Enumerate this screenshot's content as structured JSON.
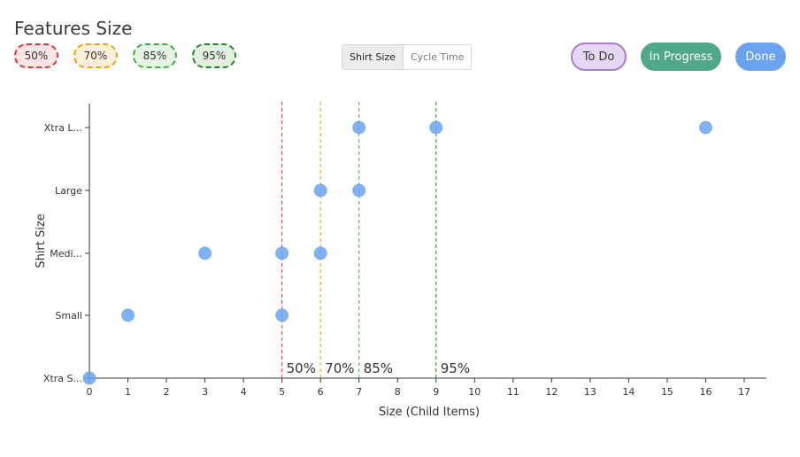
{
  "header": {
    "title": "Features Size",
    "percentiles": [
      {
        "label": "50%",
        "color": "#e03535",
        "bg": "#fbe5e5"
      },
      {
        "label": "70%",
        "color": "#f0a010",
        "bg": "#fdf1dc"
      },
      {
        "label": "85%",
        "color": "#3fae3f",
        "bg": "#e6f4e4"
      },
      {
        "label": "95%",
        "color": "#1f8a1f",
        "bg": "#e3f0e1"
      }
    ],
    "toggle": {
      "options": [
        "Shirt Size",
        "Cycle Time"
      ],
      "selected": "Shirt Size"
    },
    "states": [
      {
        "label": "To Do",
        "bg": "#e6d8f5",
        "border": "#a77bd6",
        "text": "#333333"
      },
      {
        "label": "In Progress",
        "bg": "#4fa88a",
        "border": "#4fa88a",
        "text": "#ffffff"
      },
      {
        "label": "Done",
        "bg": "#6aa3ef",
        "border": "#6aa3ef",
        "text": "#ffffff"
      }
    ]
  },
  "chart_data": {
    "type": "scatter",
    "xlabel": "Size (Child Items)",
    "ylabel": "Shirt Size",
    "xlim": [
      0,
      17
    ],
    "x_ticks": [
      0,
      1,
      2,
      3,
      4,
      5,
      6,
      7,
      8,
      9,
      10,
      11,
      12,
      13,
      14,
      15,
      16,
      17
    ],
    "categories": [
      "Xtra S...",
      "Small",
      "Medi...",
      "Large",
      "Xtra L..."
    ],
    "point_color": "#6aa3ef",
    "points": [
      {
        "x": 0,
        "y": "Xtra S..."
      },
      {
        "x": 1,
        "y": "Small"
      },
      {
        "x": 5,
        "y": "Small"
      },
      {
        "x": 3,
        "y": "Medi..."
      },
      {
        "x": 5,
        "y": "Medi..."
      },
      {
        "x": 6,
        "y": "Medi..."
      },
      {
        "x": 6,
        "y": "Large"
      },
      {
        "x": 7,
        "y": "Large"
      },
      {
        "x": 7,
        "y": "Xtra L..."
      },
      {
        "x": 9,
        "y": "Xtra L..."
      },
      {
        "x": 16,
        "y": "Xtra L..."
      }
    ],
    "percentile_lines": [
      {
        "label": "50%",
        "x": 5,
        "color": "#e03535"
      },
      {
        "label": "70%",
        "x": 6,
        "color": "#f0a010"
      },
      {
        "label": "85%",
        "x": 7,
        "color": "#3fae3f"
      },
      {
        "label": "95%",
        "x": 9,
        "color": "#1f8a1f"
      }
    ]
  }
}
